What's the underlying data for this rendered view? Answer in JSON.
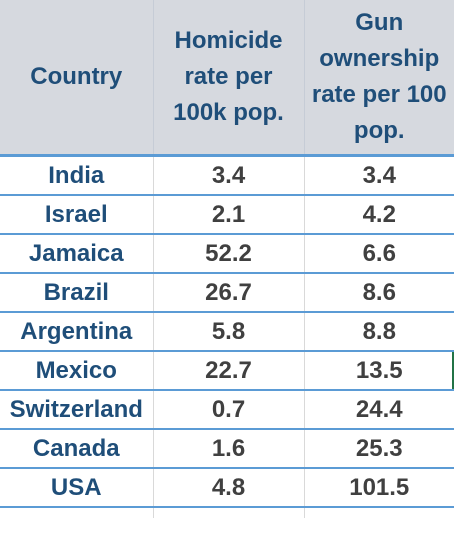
{
  "table": {
    "headers": {
      "country": "Country",
      "homicide": "Homicide rate per 100k pop.",
      "guns": "Gun ownership rate per 100 pop."
    },
    "rows": [
      {
        "country": "India",
        "homicide": "3.4",
        "guns": "3.4"
      },
      {
        "country": "Israel",
        "homicide": "2.1",
        "guns": "4.2"
      },
      {
        "country": "Jamaica",
        "homicide": "52.2",
        "guns": "6.6"
      },
      {
        "country": "Brazil",
        "homicide": "26.7",
        "guns": "8.6"
      },
      {
        "country": "Argentina",
        "homicide": "5.8",
        "guns": "8.8"
      },
      {
        "country": "Mexico",
        "homicide": "22.7",
        "guns": "13.5"
      },
      {
        "country": "Switzerland",
        "homicide": "0.7",
        "guns": "24.4"
      },
      {
        "country": "Canada",
        "homicide": "1.6",
        "guns": "25.3"
      },
      {
        "country": "USA",
        "homicide": "4.8",
        "guns": "101.5"
      }
    ]
  },
  "colors": {
    "header_background": "#d6d9df",
    "header_text": "#1f4e79",
    "row_border": "#5b9bd5",
    "cell_text": "#404040",
    "selected_cell_border": "#217346"
  }
}
